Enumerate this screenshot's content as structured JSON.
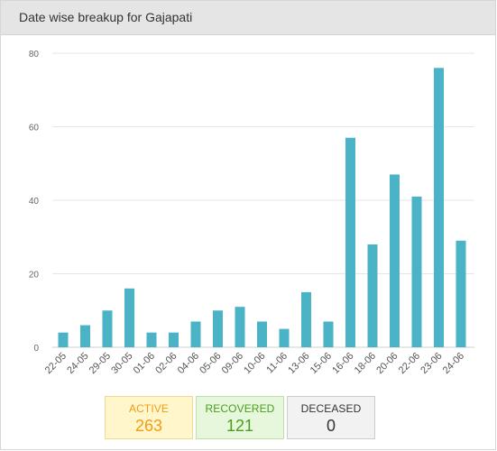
{
  "panel": {
    "title": "Date wise breakup for Gajapati"
  },
  "chart_data": {
    "type": "bar",
    "title": "",
    "xlabel": "",
    "ylabel": "",
    "categories": [
      "22-05",
      "24-05",
      "29-05",
      "30-05",
      "01-06",
      "02-06",
      "04-06",
      "05-06",
      "09-06",
      "10-06",
      "11-06",
      "13-06",
      "15-06",
      "16-06",
      "18-06",
      "20-06",
      "22-06",
      "23-06",
      "24-06"
    ],
    "values": [
      4,
      6,
      10,
      16,
      4,
      4,
      7,
      10,
      11,
      7,
      5,
      15,
      7,
      57,
      28,
      47,
      41,
      76,
      29
    ],
    "ylim": [
      0,
      80
    ],
    "yticks": [
      "0",
      "20",
      "40",
      "60",
      "80"
    ],
    "grid": true,
    "bar_color": "#4bb3c6",
    "grid_color": "#e6e6e6"
  },
  "stats": {
    "active": {
      "label": "ACTIVE",
      "value": "263",
      "color": "#f39c12"
    },
    "recovered": {
      "label": "RECOVERED",
      "value": "121",
      "color": "#4a9d1e"
    },
    "deceased": {
      "label": "DECEASED",
      "value": "0",
      "color": "#333333"
    }
  }
}
